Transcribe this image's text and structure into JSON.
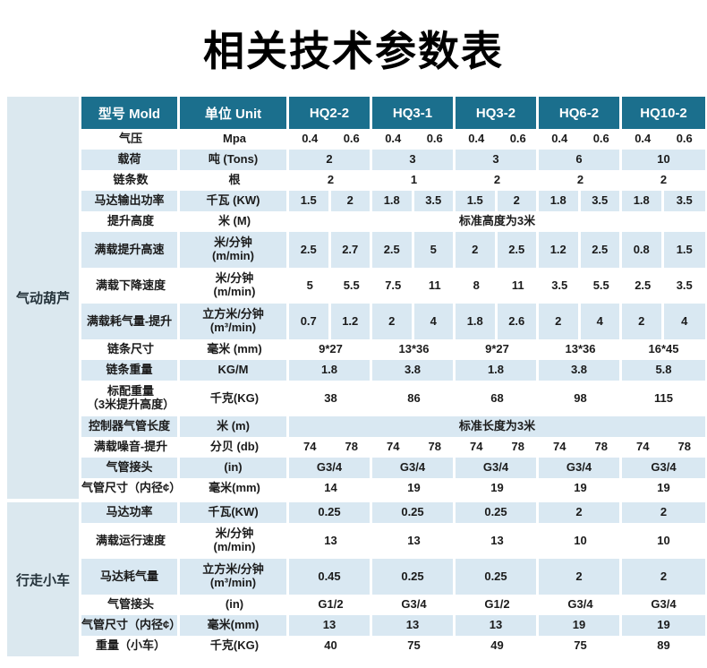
{
  "page": {
    "title": "相关技术参数表"
  },
  "colors": {
    "header_bg": "#1b6f8d",
    "header_text": "#ffffff",
    "row_alt_bg": "#d9e8f2",
    "row_bg": "#ffffff",
    "group_bg": "#dbe8ef",
    "text": "#1b1b1b"
  },
  "table": {
    "header": {
      "model_label": "型号 Mold",
      "unit_label": "单位 Unit",
      "models": [
        "HQ2-2",
        "HQ3-1",
        "HQ3-2",
        "HQ6-2",
        "HQ10-2"
      ]
    },
    "sections": [
      {
        "group": "气动葫芦",
        "rows": [
          {
            "label": "气压",
            "unit": "Mpa",
            "type": "pairs",
            "values": [
              "0.4",
              "0.6",
              "0.4",
              "0.6",
              "0.4",
              "0.6",
              "0.4",
              "0.6",
              "0.4",
              "0.6"
            ]
          },
          {
            "label": "载荷",
            "unit": "吨 (Tons)",
            "type": "single",
            "values": [
              "2",
              "3",
              "3",
              "6",
              "10"
            ]
          },
          {
            "label": "链条数",
            "unit": "根",
            "type": "single",
            "values": [
              "2",
              "1",
              "2",
              "2",
              "2"
            ]
          },
          {
            "label": "马达输出功率",
            "unit": "千瓦 (KW)",
            "type": "pairs",
            "values": [
              "1.5",
              "2",
              "1.8",
              "3.5",
              "1.5",
              "2",
              "1.8",
              "3.5",
              "1.8",
              "3.5"
            ]
          },
          {
            "label": "提升高度",
            "unit": "米 (M)",
            "type": "span",
            "values": [
              "标准高度为3米"
            ]
          },
          {
            "label": "满载提升高速",
            "unit": "米/分钟\n(m/min)",
            "type": "pairs",
            "values": [
              "2.5",
              "2.7",
              "2.5",
              "5",
              "2",
              "2.5",
              "1.2",
              "2.5",
              "0.8",
              "1.5"
            ]
          },
          {
            "label": "满载下降速度",
            "unit": "米/分钟\n(m/min)",
            "type": "pairs",
            "values": [
              "5",
              "5.5",
              "7.5",
              "11",
              "8",
              "11",
              "3.5",
              "5.5",
              "2.5",
              "3.5"
            ]
          },
          {
            "label": "满载耗气量-提升",
            "unit": "立方米/分钟\n(m³/min)",
            "type": "pairs",
            "values": [
              "0.7",
              "1.2",
              "2",
              "4",
              "1.8",
              "2.6",
              "2",
              "4",
              "2",
              "4"
            ]
          },
          {
            "label": "链条尺寸",
            "unit": "毫米 (mm)",
            "type": "single",
            "values": [
              "9*27",
              "13*36",
              "9*27",
              "13*36",
              "16*45"
            ]
          },
          {
            "label": "链条重量",
            "unit": "KG/M",
            "type": "single",
            "values": [
              "1.8",
              "3.8",
              "1.8",
              "3.8",
              "5.8"
            ]
          },
          {
            "label": "标配重量\n（3米提升高度）",
            "unit": "千克(KG)",
            "type": "single",
            "values": [
              "38",
              "86",
              "68",
              "98",
              "115"
            ]
          },
          {
            "label": "控制器气管长度",
            "unit": "米 (m)",
            "type": "span",
            "values": [
              "标准长度为3米"
            ]
          },
          {
            "label": "满载噪音-提升",
            "unit": "分贝 (db)",
            "type": "pairs",
            "values": [
              "74",
              "78",
              "74",
              "78",
              "74",
              "78",
              "74",
              "78",
              "74",
              "78"
            ]
          },
          {
            "label": "气管接头",
            "unit": "(in)",
            "type": "single",
            "values": [
              "G3/4",
              "G3/4",
              "G3/4",
              "G3/4",
              "G3/4"
            ]
          },
          {
            "label": "气管尺寸（内径¢）",
            "unit": "毫米(mm)",
            "type": "single",
            "values": [
              "14",
              "19",
              "19",
              "19",
              "19"
            ]
          }
        ]
      },
      {
        "group": "行走小车",
        "rows": [
          {
            "label": "马达功率",
            "unit": "千瓦(KW)",
            "type": "single",
            "values": [
              "0.25",
              "0.25",
              "0.25",
              "2",
              "2"
            ]
          },
          {
            "label": "满载运行速度",
            "unit": "米/分钟\n(m/min)",
            "type": "single",
            "values": [
              "13",
              "13",
              "13",
              "10",
              "10"
            ]
          },
          {
            "label": "马达耗气量",
            "unit": "立方米/分钟\n(m³/min)",
            "type": "single",
            "values": [
              "0.45",
              "0.25",
              "0.25",
              "2",
              "2"
            ]
          },
          {
            "label": "气管接头",
            "unit": "(in)",
            "type": "single",
            "values": [
              "G1/2",
              "G3/4",
              "G1/2",
              "G3/4",
              "G3/4"
            ]
          },
          {
            "label": "气管尺寸（内径¢）",
            "unit": "毫米(mm)",
            "type": "single",
            "values": [
              "13",
              "13",
              "13",
              "19",
              "19"
            ]
          },
          {
            "label": "重量（小车）",
            "unit": "千克(KG)",
            "type": "single",
            "values": [
              "40",
              "75",
              "49",
              "75",
              "89"
            ]
          }
        ]
      }
    ]
  }
}
